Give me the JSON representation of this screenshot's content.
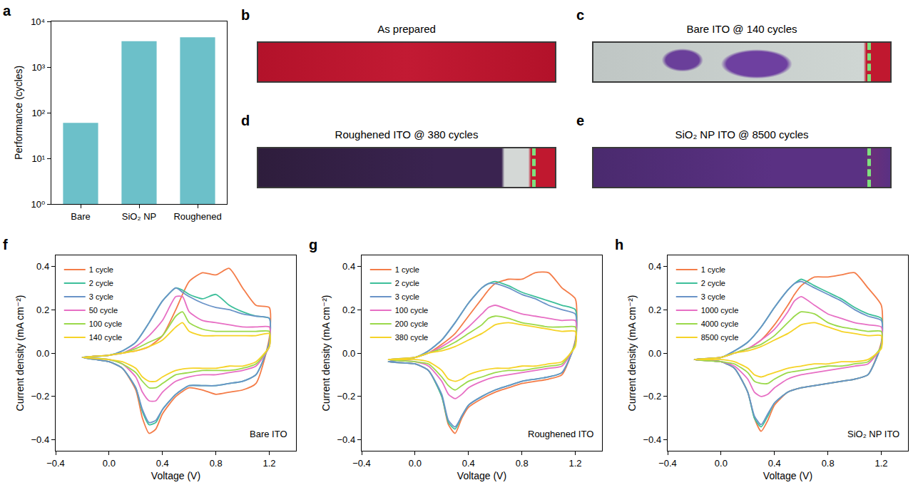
{
  "chart_data": [
    {
      "panel": "a",
      "type": "bar",
      "categories": [
        "Bare",
        "SiO₂ NP",
        "Roughened"
      ],
      "values": [
        60,
        3700,
        4500
      ],
      "color": "#6cc0c9",
      "log": "y",
      "ylim": [
        1,
        10000
      ],
      "yticks": [
        {
          "value": 1,
          "label": "10⁰"
        },
        {
          "value": 10,
          "label": "10¹"
        },
        {
          "value": 100,
          "label": "10²"
        },
        {
          "value": 1000,
          "label": "10³"
        },
        {
          "value": 10000,
          "label": "10⁴"
        }
      ],
      "y_label": "Performance (cycles)",
      "grid": false
    },
    {
      "panel": "f",
      "type": "line",
      "annotation": "Bare ITO",
      "legend": "top-left",
      "grid": false,
      "x_label": "Voltage (V)",
      "y_label": "Current density (mA cm⁻²)",
      "x": [
        -0.2,
        0,
        0.1,
        0.2,
        0.3,
        0.4,
        0.5,
        0.55,
        0.6,
        0.7,
        0.8,
        0.9,
        1.0,
        1.1,
        1.2,
        1.2,
        1.1,
        1.0,
        0.9,
        0.8,
        0.7,
        0.6,
        0.5,
        0.4,
        0.35,
        0.3,
        0.25,
        0.2,
        0.1,
        0.0,
        -0.2
      ],
      "xlim": [
        -0.4,
        1.4
      ],
      "xticks": [
        {
          "value": -0.4,
          "label": "−0.4"
        },
        {
          "value": 0,
          "label": "0.0"
        },
        {
          "value": 0.4,
          "label": "0.4"
        },
        {
          "value": 0.8,
          "label": "0.8"
        },
        {
          "value": 1.2,
          "label": "1.2"
        }
      ],
      "ylim": [
        -0.45,
        0.45
      ],
      "yticks": [
        {
          "value": -0.4,
          "label": "−0.4"
        },
        {
          "value": -0.2,
          "label": "−0.2"
        },
        {
          "value": 0,
          "label": "0.0"
        },
        {
          "value": 0.2,
          "label": "0.2"
        },
        {
          "value": 0.4,
          "label": "0.4"
        }
      ],
      "series": [
        {
          "name": "1 cycle",
          "color": "#f47c48",
          "values": [
            -0.02,
            -0.01,
            0.0,
            0.01,
            0.03,
            0.08,
            0.2,
            0.27,
            0.33,
            0.37,
            0.36,
            0.39,
            0.3,
            0.22,
            0.21,
            0.07,
            -0.14,
            -0.17,
            -0.18,
            -0.19,
            -0.17,
            -0.16,
            -0.2,
            -0.28,
            -0.35,
            -0.37,
            -0.3,
            -0.17,
            -0.07,
            -0.04,
            -0.02
          ]
        },
        {
          "name": "2 cycle",
          "color": "#3dbf9a",
          "values": [
            -0.02,
            -0.01,
            0.01,
            0.05,
            0.14,
            0.24,
            0.3,
            0.29,
            0.27,
            0.25,
            0.27,
            0.22,
            0.19,
            0.17,
            0.16,
            0.05,
            -0.1,
            -0.13,
            -0.14,
            -0.15,
            -0.15,
            -0.15,
            -0.19,
            -0.26,
            -0.32,
            -0.33,
            -0.27,
            -0.16,
            -0.07,
            -0.04,
            -0.02
          ]
        },
        {
          "name": "3 cycle",
          "color": "#6a93c8",
          "values": [
            -0.02,
            -0.01,
            0.01,
            0.05,
            0.14,
            0.24,
            0.3,
            0.28,
            0.26,
            0.23,
            0.21,
            0.2,
            0.18,
            0.17,
            0.16,
            0.05,
            -0.1,
            -0.13,
            -0.14,
            -0.15,
            -0.15,
            -0.15,
            -0.19,
            -0.26,
            -0.31,
            -0.32,
            -0.26,
            -0.16,
            -0.07,
            -0.04,
            -0.02
          ]
        },
        {
          "name": "50 cycle",
          "color": "#e76fc4",
          "values": [
            -0.02,
            -0.01,
            0.0,
            0.03,
            0.08,
            0.15,
            0.26,
            0.26,
            0.19,
            0.15,
            0.14,
            0.13,
            0.12,
            0.12,
            0.12,
            0.03,
            -0.06,
            -0.08,
            -0.09,
            -0.1,
            -0.1,
            -0.11,
            -0.13,
            -0.18,
            -0.22,
            -0.22,
            -0.18,
            -0.11,
            -0.05,
            -0.03,
            -0.02
          ]
        },
        {
          "name": "100 cycle",
          "color": "#9ad94a",
          "values": [
            -0.02,
            -0.01,
            0.0,
            0.02,
            0.05,
            0.08,
            0.17,
            0.19,
            0.14,
            0.11,
            0.1,
            0.1,
            0.1,
            0.1,
            0.1,
            0.03,
            -0.05,
            -0.07,
            -0.08,
            -0.08,
            -0.08,
            -0.09,
            -0.1,
            -0.14,
            -0.16,
            -0.16,
            -0.13,
            -0.09,
            -0.05,
            -0.03,
            -0.02
          ]
        },
        {
          "name": "140 cycle",
          "color": "#f5d327",
          "values": [
            -0.02,
            -0.01,
            0.0,
            0.01,
            0.03,
            0.06,
            0.12,
            0.14,
            0.1,
            0.08,
            0.08,
            0.08,
            0.08,
            0.08,
            0.09,
            0.03,
            -0.04,
            -0.06,
            -0.06,
            -0.07,
            -0.07,
            -0.07,
            -0.08,
            -0.11,
            -0.13,
            -0.13,
            -0.11,
            -0.07,
            -0.04,
            -0.03,
            -0.02
          ]
        }
      ]
    },
    {
      "panel": "g",
      "type": "line",
      "annotation": "Roughened ITO",
      "legend": "top-left",
      "grid": false,
      "x_label": "Voltage (V)",
      "y_label": "Current density (mA cm⁻²)",
      "x": [
        -0.2,
        0,
        0.1,
        0.2,
        0.3,
        0.4,
        0.5,
        0.55,
        0.6,
        0.7,
        0.8,
        0.9,
        1.0,
        1.1,
        1.2,
        1.2,
        1.1,
        1.0,
        0.9,
        0.8,
        0.7,
        0.6,
        0.5,
        0.4,
        0.35,
        0.3,
        0.25,
        0.2,
        0.1,
        0.0,
        -0.2
      ],
      "xlim": [
        -0.4,
        1.4
      ],
      "xticks": [
        {
          "value": -0.4,
          "label": "−0.4"
        },
        {
          "value": 0,
          "label": "0.0"
        },
        {
          "value": 0.4,
          "label": "0.4"
        },
        {
          "value": 0.8,
          "label": "0.8"
        },
        {
          "value": 1.2,
          "label": "1.2"
        }
      ],
      "ylim": [
        -0.45,
        0.45
      ],
      "yticks": [
        {
          "value": -0.4,
          "label": "−0.4"
        },
        {
          "value": -0.2,
          "label": "−0.2"
        },
        {
          "value": 0,
          "label": "0.0"
        },
        {
          "value": 0.2,
          "label": "0.2"
        },
        {
          "value": 0.4,
          "label": "0.4"
        }
      ],
      "series": [
        {
          "name": "1 cycle",
          "color": "#f47c48",
          "values": [
            -0.04,
            -0.02,
            0.0,
            0.04,
            0.09,
            0.17,
            0.25,
            0.29,
            0.32,
            0.34,
            0.34,
            0.37,
            0.37,
            0.3,
            0.25,
            0.06,
            -0.1,
            -0.12,
            -0.13,
            -0.14,
            -0.16,
            -0.18,
            -0.21,
            -0.25,
            -0.3,
            -0.37,
            -0.33,
            -0.2,
            -0.08,
            -0.05,
            -0.04
          ]
        },
        {
          "name": "2 cycle",
          "color": "#3dbf9a",
          "values": [
            -0.04,
            -0.02,
            0.01,
            0.06,
            0.14,
            0.23,
            0.3,
            0.32,
            0.33,
            0.31,
            0.28,
            0.26,
            0.24,
            0.22,
            0.2,
            0.05,
            -0.09,
            -0.11,
            -0.12,
            -0.13,
            -0.15,
            -0.17,
            -0.2,
            -0.24,
            -0.29,
            -0.35,
            -0.32,
            -0.2,
            -0.08,
            -0.05,
            -0.04
          ]
        },
        {
          "name": "3 cycle",
          "color": "#6a93c8",
          "values": [
            -0.04,
            -0.02,
            0.01,
            0.06,
            0.14,
            0.23,
            0.3,
            0.32,
            0.32,
            0.3,
            0.27,
            0.25,
            0.22,
            0.2,
            0.18,
            0.05,
            -0.09,
            -0.11,
            -0.12,
            -0.13,
            -0.15,
            -0.17,
            -0.2,
            -0.24,
            -0.29,
            -0.34,
            -0.31,
            -0.19,
            -0.08,
            -0.05,
            -0.04
          ]
        },
        {
          "name": "100 cycle",
          "color": "#e76fc4",
          "values": [
            -0.03,
            -0.02,
            0.0,
            0.03,
            0.07,
            0.12,
            0.18,
            0.21,
            0.22,
            0.2,
            0.18,
            0.17,
            0.16,
            0.15,
            0.15,
            0.04,
            -0.06,
            -0.07,
            -0.08,
            -0.09,
            -0.1,
            -0.11,
            -0.13,
            -0.16,
            -0.19,
            -0.21,
            -0.19,
            -0.13,
            -0.06,
            -0.04,
            -0.03
          ]
        },
        {
          "name": "200 cycle",
          "color": "#9ad94a",
          "values": [
            -0.03,
            -0.02,
            0.0,
            0.02,
            0.05,
            0.09,
            0.13,
            0.16,
            0.17,
            0.16,
            0.14,
            0.13,
            0.12,
            0.12,
            0.12,
            0.04,
            -0.05,
            -0.06,
            -0.07,
            -0.08,
            -0.08,
            -0.09,
            -0.11,
            -0.13,
            -0.15,
            -0.17,
            -0.15,
            -0.11,
            -0.05,
            -0.04,
            -0.03
          ]
        },
        {
          "name": "380 cycle",
          "color": "#f5d327",
          "values": [
            -0.03,
            -0.02,
            0.0,
            0.01,
            0.03,
            0.06,
            0.09,
            0.11,
            0.13,
            0.14,
            0.13,
            0.12,
            0.11,
            0.1,
            0.1,
            0.03,
            -0.04,
            -0.05,
            -0.06,
            -0.06,
            -0.07,
            -0.07,
            -0.08,
            -0.1,
            -0.12,
            -0.13,
            -0.12,
            -0.08,
            -0.04,
            -0.03,
            -0.03
          ]
        }
      ]
    },
    {
      "panel": "h",
      "type": "line",
      "annotation": "SiO₂ NP ITO",
      "legend": "top-left",
      "grid": false,
      "x_label": "Voltage (V)",
      "y_label": "Current density (mA cm⁻²)",
      "x": [
        -0.2,
        0,
        0.1,
        0.2,
        0.3,
        0.4,
        0.5,
        0.55,
        0.6,
        0.7,
        0.8,
        0.9,
        1.0,
        1.1,
        1.2,
        1.2,
        1.1,
        1.0,
        0.9,
        0.8,
        0.7,
        0.6,
        0.5,
        0.4,
        0.35,
        0.3,
        0.25,
        0.2,
        0.1,
        0.0,
        -0.2
      ],
      "xlim": [
        -0.4,
        1.4
      ],
      "xticks": [
        {
          "value": -0.4,
          "label": "−0.4"
        },
        {
          "value": 0,
          "label": "0.0"
        },
        {
          "value": 0.4,
          "label": "0.4"
        },
        {
          "value": 0.8,
          "label": "0.8"
        },
        {
          "value": 1.2,
          "label": "1.2"
        }
      ],
      "ylim": [
        -0.45,
        0.45
      ],
      "yticks": [
        {
          "value": -0.4,
          "label": "−0.4"
        },
        {
          "value": -0.2,
          "label": "−0.2"
        },
        {
          "value": 0,
          "label": "0.0"
        },
        {
          "value": 0.2,
          "label": "0.2"
        },
        {
          "value": 0.4,
          "label": "0.4"
        }
      ],
      "series": [
        {
          "name": "1 cycle",
          "color": "#f47c48",
          "values": [
            -0.03,
            -0.02,
            0.0,
            0.02,
            0.06,
            0.13,
            0.22,
            0.27,
            0.31,
            0.35,
            0.35,
            0.36,
            0.37,
            0.3,
            0.22,
            0.05,
            -0.1,
            -0.12,
            -0.13,
            -0.14,
            -0.15,
            -0.16,
            -0.18,
            -0.24,
            -0.31,
            -0.36,
            -0.3,
            -0.18,
            -0.07,
            -0.04,
            -0.03
          ]
        },
        {
          "name": "2 cycle",
          "color": "#3dbf9a",
          "values": [
            -0.03,
            -0.02,
            0.01,
            0.05,
            0.12,
            0.21,
            0.29,
            0.32,
            0.34,
            0.31,
            0.28,
            0.25,
            0.21,
            0.18,
            0.16,
            0.04,
            -0.1,
            -0.12,
            -0.13,
            -0.14,
            -0.15,
            -0.16,
            -0.18,
            -0.23,
            -0.29,
            -0.34,
            -0.3,
            -0.18,
            -0.07,
            -0.04,
            -0.03
          ]
        },
        {
          "name": "3 cycle",
          "color": "#6a93c8",
          "values": [
            -0.03,
            -0.02,
            0.01,
            0.05,
            0.12,
            0.21,
            0.29,
            0.32,
            0.33,
            0.3,
            0.27,
            0.24,
            0.2,
            0.17,
            0.15,
            0.04,
            -0.1,
            -0.12,
            -0.13,
            -0.14,
            -0.15,
            -0.16,
            -0.18,
            -0.23,
            -0.28,
            -0.33,
            -0.29,
            -0.18,
            -0.07,
            -0.04,
            -0.03
          ]
        },
        {
          "name": "1000 cycle",
          "color": "#e76fc4",
          "values": [
            -0.03,
            -0.02,
            0.0,
            0.02,
            0.06,
            0.11,
            0.19,
            0.24,
            0.26,
            0.22,
            0.18,
            0.16,
            0.14,
            0.13,
            0.12,
            0.03,
            -0.05,
            -0.06,
            -0.07,
            -0.08,
            -0.09,
            -0.1,
            -0.12,
            -0.16,
            -0.19,
            -0.2,
            -0.18,
            -0.12,
            -0.06,
            -0.04,
            -0.03
          ]
        },
        {
          "name": "4000 cycle",
          "color": "#9ad94a",
          "values": [
            -0.03,
            -0.02,
            0.0,
            0.02,
            0.04,
            0.08,
            0.14,
            0.17,
            0.19,
            0.18,
            0.14,
            0.12,
            0.11,
            0.1,
            0.1,
            0.03,
            -0.04,
            -0.05,
            -0.06,
            -0.06,
            -0.07,
            -0.08,
            -0.09,
            -0.12,
            -0.14,
            -0.14,
            -0.13,
            -0.09,
            -0.05,
            -0.04,
            -0.03
          ]
        },
        {
          "name": "8500 cycle",
          "color": "#f5d327",
          "values": [
            -0.03,
            -0.02,
            0.0,
            0.01,
            0.03,
            0.06,
            0.09,
            0.11,
            0.13,
            0.14,
            0.12,
            0.1,
            0.09,
            0.08,
            0.08,
            0.02,
            -0.03,
            -0.04,
            -0.04,
            -0.05,
            -0.05,
            -0.06,
            -0.07,
            -0.09,
            -0.1,
            -0.11,
            -0.1,
            -0.07,
            -0.04,
            -0.03,
            -0.03
          ]
        }
      ]
    }
  ],
  "photos": [
    {
      "panel": "b",
      "title": "As prepared"
    },
    {
      "panel": "c",
      "title": "Bare ITO @ 140 cycles"
    },
    {
      "panel": "d",
      "title": "Roughened ITO @ 380 cycles"
    },
    {
      "panel": "e",
      "title": "SiO₂ NP ITO @ 8500 cycles"
    }
  ]
}
